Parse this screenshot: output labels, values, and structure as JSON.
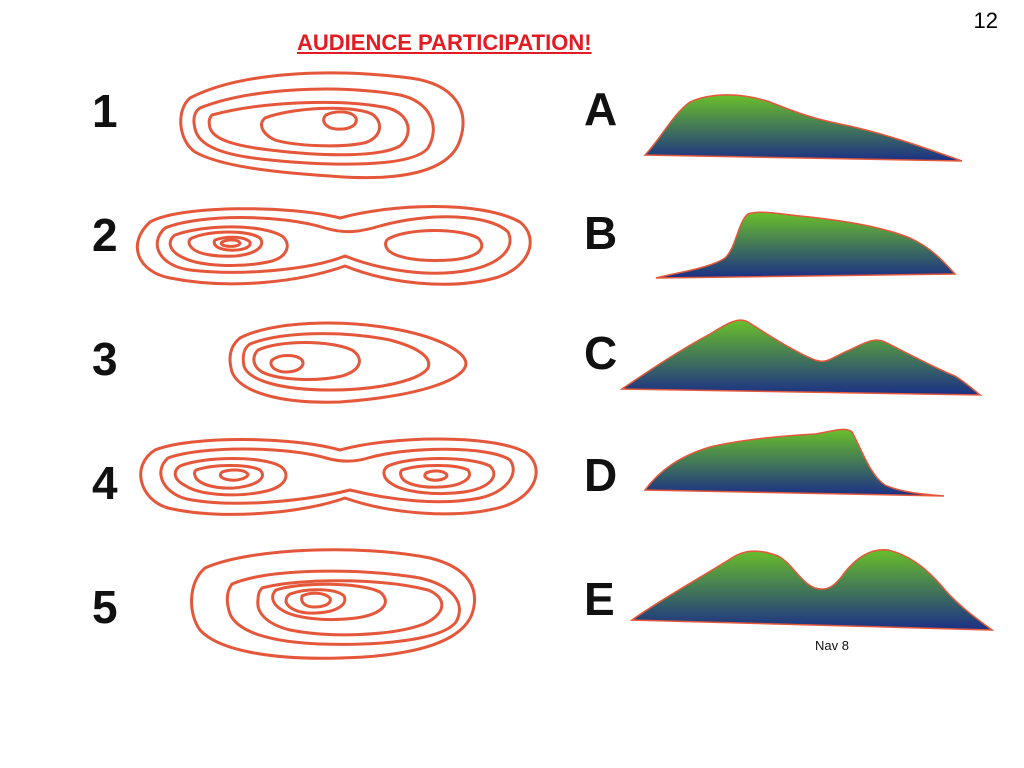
{
  "page_number": "12",
  "title": "AUDIENCE PARTICIPATION!",
  "map_labels": [
    "1",
    "2",
    "3",
    "4",
    "5"
  ],
  "profile_labels": [
    "A",
    "B",
    "C",
    "D",
    "E"
  ],
  "footer_note": "Nav 8",
  "colors": {
    "title": "#e31b23",
    "contour": "#e4573a",
    "profile_top": "#6abf2a",
    "profile_bottom": "#1b2f86"
  }
}
